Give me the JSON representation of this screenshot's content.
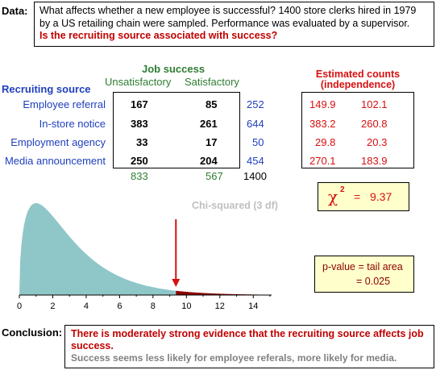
{
  "data_label": "Data:",
  "data_text_1": "What affects whether a new employee is successful? 1400 store clerks hired in 1979",
  "data_text_2": "by a US retailing chain were sampled. Performance was evaluated by a supervisor.",
  "data_question": "Is the recruiting source associated with success?",
  "table": {
    "col_group": "Job success",
    "row_group": "Recruiting source",
    "col_headers": [
      "Unsatisfactory",
      "Satisfactory"
    ],
    "rows": [
      {
        "label": "Employee referral",
        "values": [
          "167",
          "85"
        ],
        "total": "252"
      },
      {
        "label": "In-store notice",
        "values": [
          "383",
          "261"
        ],
        "total": "644"
      },
      {
        "label": "Employment agency",
        "values": [
          "33",
          "17"
        ],
        "total": "50"
      },
      {
        "label": "Media announcement",
        "values": [
          "250",
          "204"
        ],
        "total": "454"
      }
    ],
    "col_totals": [
      "833",
      "567"
    ],
    "grand_total": "1400"
  },
  "estimated": {
    "title_1": "Estimated counts",
    "title_2": "(independence)",
    "rows": [
      [
        "149.9",
        "102.1"
      ],
      [
        "383.2",
        "260.8"
      ],
      [
        "29.8",
        "20.3"
      ],
      [
        "270.1",
        "183.9"
      ]
    ]
  },
  "chi_box": {
    "symbol": "χ",
    "exponent": "2",
    "equals": "=",
    "value": "9.37"
  },
  "chart_label": "Chi-squared (3 df)",
  "p_box": {
    "line_1": "p-value  =  tail area",
    "line_2": "=  0.025"
  },
  "conclusion_label": "Conclusion:",
  "conclusion_1": "There is moderately strong evidence that the recruiting source affects job success.",
  "conclusion_2": "Success seems less likely for employee referals, more likely for media.",
  "chart_data": {
    "type": "area",
    "distribution": "chi-squared",
    "df": 3,
    "statistic": 9.37,
    "xlim": [
      0,
      15
    ],
    "x_ticks": [
      "0",
      "2",
      "4",
      "6",
      "8",
      "10",
      "12",
      "14"
    ],
    "fill_color": "#8fc7c9",
    "tail_color": "#8b0000",
    "marker_color": "#d81010"
  }
}
